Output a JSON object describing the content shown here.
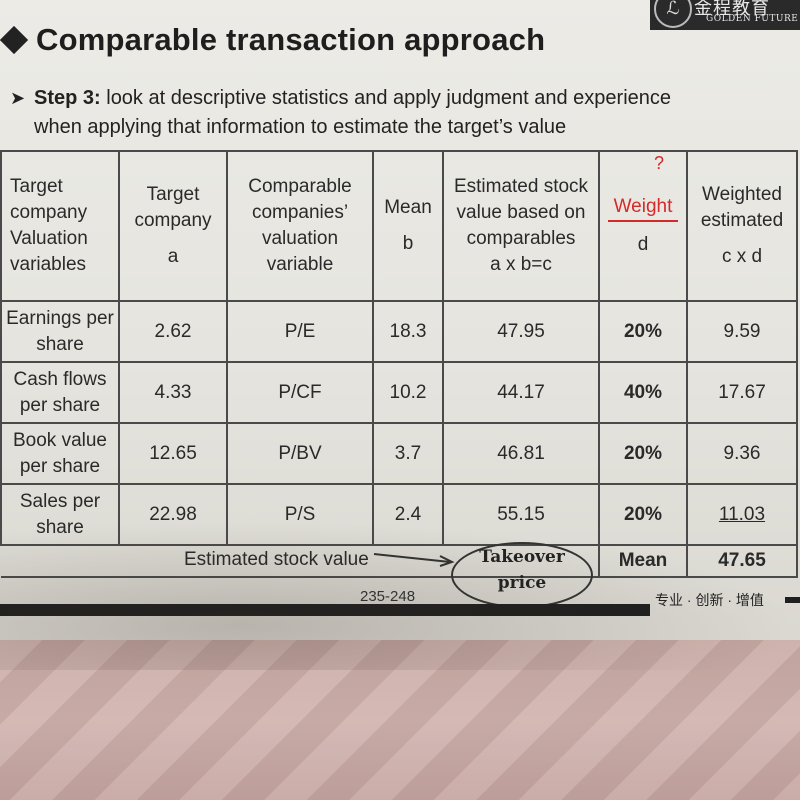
{
  "logo": {
    "cn": "金程教育",
    "en": "GOLDEN FUTURE",
    "mark": "ℒ"
  },
  "title": "Comparable transaction approach",
  "step": {
    "label": "Step 3:",
    "line1": " look at descriptive statistics and apply judgment and experience",
    "line2": "when applying that information to estimate the target’s value"
  },
  "table": {
    "headers": [
      {
        "text": "Target company Valuation variables",
        "sub": ""
      },
      {
        "text": "Target company",
        "sub": "a"
      },
      {
        "text": "Comparable companies’ valuation variable",
        "sub": ""
      },
      {
        "text": "Mean",
        "sub": "b"
      },
      {
        "text": "Estimated stock value based on comparables",
        "sub": "a x b=c"
      },
      {
        "text": "Weight",
        "sub": "d",
        "annotation": "?"
      },
      {
        "text": "Weighted estimated",
        "sub": "c x d"
      }
    ],
    "rows": [
      {
        "variable": "Earnings per share",
        "target": "2.62",
        "multiple": "P/E",
        "mean": "18.3",
        "estimated": "47.95",
        "weight": "20%",
        "weighted": "9.59"
      },
      {
        "variable": "Cash flows per share",
        "target": "4.33",
        "multiple": "P/CF",
        "mean": "10.2",
        "estimated": "44.17",
        "weight": "40%",
        "weighted": "17.67"
      },
      {
        "variable": "Book value per share",
        "target": "12.65",
        "multiple": "P/BV",
        "mean": "3.7",
        "estimated": "46.81",
        "weight": "20%",
        "weighted": "9.36"
      },
      {
        "variable": "Sales per share",
        "target": "22.98",
        "multiple": "P/S",
        "mean": "2.4",
        "estimated": "55.15",
        "weight": "20%",
        "weighted": "11.03"
      }
    ],
    "footer": {
      "label": "Estimated stock value",
      "mean_label": "Mean",
      "mean_value": "47.65"
    }
  },
  "annotation": {
    "line1": "Takeover",
    "line2": "price"
  },
  "page_ref": "235-248",
  "tagline": "专业 · 创新 · 增值",
  "colors": {
    "ink": "#2a2a2a",
    "annotation_red": "#d32a2a",
    "paper": "#ecebe6"
  }
}
